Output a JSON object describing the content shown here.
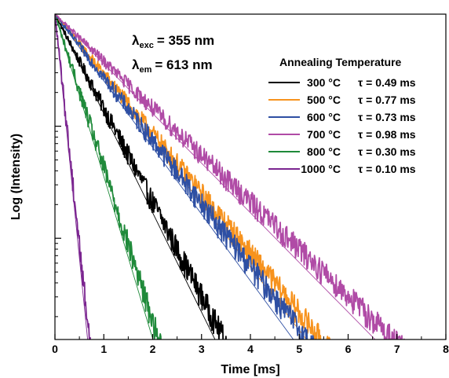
{
  "chart_data": {
    "type": "line",
    "xlabel": "Time [ms]",
    "ylabel": "Log (Intensity)",
    "xlim": [
      0,
      8
    ],
    "x_ticks": [
      "0",
      "1",
      "2",
      "3",
      "4",
      "5",
      "6",
      "7",
      "8"
    ],
    "y_scale": "log",
    "ylim": [
      0.00125,
      1
    ],
    "y_major_ticks": [
      1,
      0.1,
      0.01
    ],
    "grid": false,
    "annotations": {
      "exc": {
        "lambda": "λ",
        "sub": "exc",
        "value": "= 355 nm"
      },
      "em": {
        "lambda": "λ",
        "sub": "em",
        "value": "= 613 nm"
      }
    },
    "legend_title": "Annealing Temperature",
    "legend_position": "top-right",
    "series": [
      {
        "name": "300 °C",
        "tau_label": "τ = 0.49 ms",
        "tau_ms": 0.49,
        "color": "#000000",
        "data_end_ms": 3.9
      },
      {
        "name": "500 °C",
        "tau_label": "τ = 0.77 ms",
        "tau_ms": 0.77,
        "color": "#f7931e",
        "data_end_ms": 6.2
      },
      {
        "name": "600 °C",
        "tau_label": "τ = 0.73 ms",
        "tau_ms": 0.73,
        "color": "#2e4fa3",
        "data_end_ms": 5.6
      },
      {
        "name": "700 °C",
        "tau_label": "τ = 0.98 ms",
        "tau_ms": 0.98,
        "color": "#b04ba6",
        "data_end_ms": 7.7
      },
      {
        "name": "800 °C",
        "tau_label": "τ = 0.30 ms",
        "tau_ms": 0.3,
        "color": "#1f8a3a",
        "data_end_ms": 2.5
      },
      {
        "name": "1000 °C",
        "tau_label": "τ = 0.10 ms",
        "tau_ms": 0.1,
        "color": "#7b2590",
        "data_end_ms": 0.85
      }
    ]
  }
}
